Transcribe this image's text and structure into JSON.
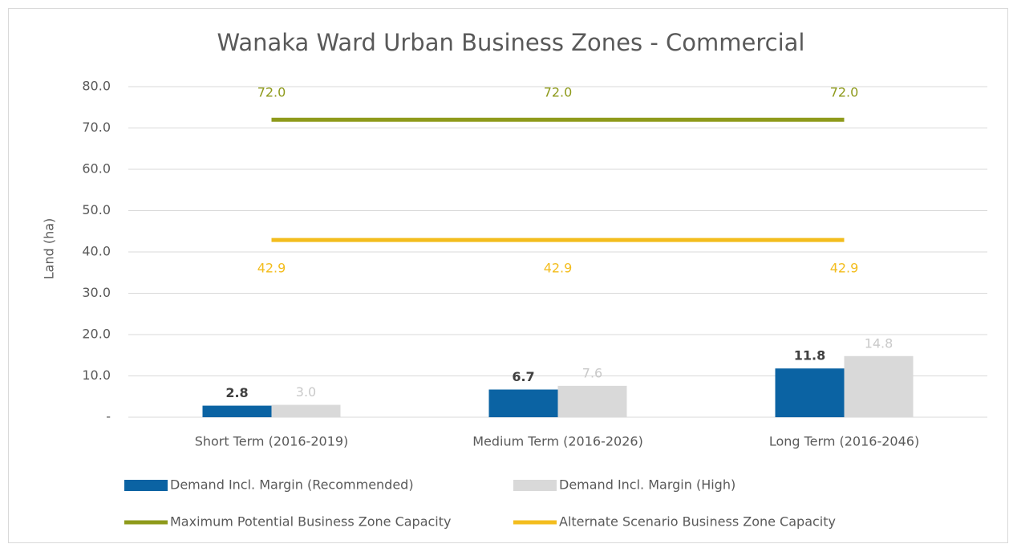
{
  "chart_data": {
    "type": "bar",
    "title": "Wanaka Ward Urban Business Zones - Commercial",
    "y_label": "Land (ha)",
    "categories": [
      "Short Term (2016-2019)",
      "Medium Term (2016-2026)",
      "Long Term (2016-2046)"
    ],
    "ylim": [
      0,
      80
    ],
    "yticks": [
      {
        "value": 0,
        "label": "-"
      },
      {
        "value": 10,
        "label": "10.0"
      },
      {
        "value": 20,
        "label": "20.0"
      },
      {
        "value": 30,
        "label": "30.0"
      },
      {
        "value": 40,
        "label": "40.0"
      },
      {
        "value": 50,
        "label": "50.0"
      },
      {
        "value": 60,
        "label": "60.0"
      },
      {
        "value": 70,
        "label": "70.0"
      },
      {
        "value": 80,
        "label": "80.0"
      }
    ],
    "grid": true,
    "legend": "bottom",
    "series": [
      {
        "name": "Demand Incl. Margin (Recommended)",
        "type": "bar",
        "color": "#0b63a3",
        "label_color": "#404040",
        "values": [
          2.8,
          6.7,
          11.8
        ],
        "value_labels": [
          "2.8",
          "6.7",
          "11.8"
        ]
      },
      {
        "name": "Demand Incl. Margin (High)",
        "type": "bar",
        "color": "#d9d9d9",
        "label_color": "#c9c9c9",
        "values": [
          3.0,
          7.6,
          14.8
        ],
        "value_labels": [
          "3.0",
          "7.6",
          "14.8"
        ]
      },
      {
        "name": "Maximum Potential Business Zone Capacity",
        "type": "line",
        "color": "#8e9a1b",
        "label_color": "#8e9a1b",
        "values": [
          72,
          72,
          72
        ],
        "value_labels": [
          "72.0",
          "72.0",
          "72.0"
        ]
      },
      {
        "name": "Alternate Scenario Business Zone Capacity",
        "type": "line",
        "color": "#f3bd1e",
        "label_color": "#f3bd1e",
        "values": [
          42.9,
          42.9,
          42.9
        ],
        "value_labels": [
          "42.9",
          "42.9",
          "42.9"
        ]
      }
    ]
  }
}
